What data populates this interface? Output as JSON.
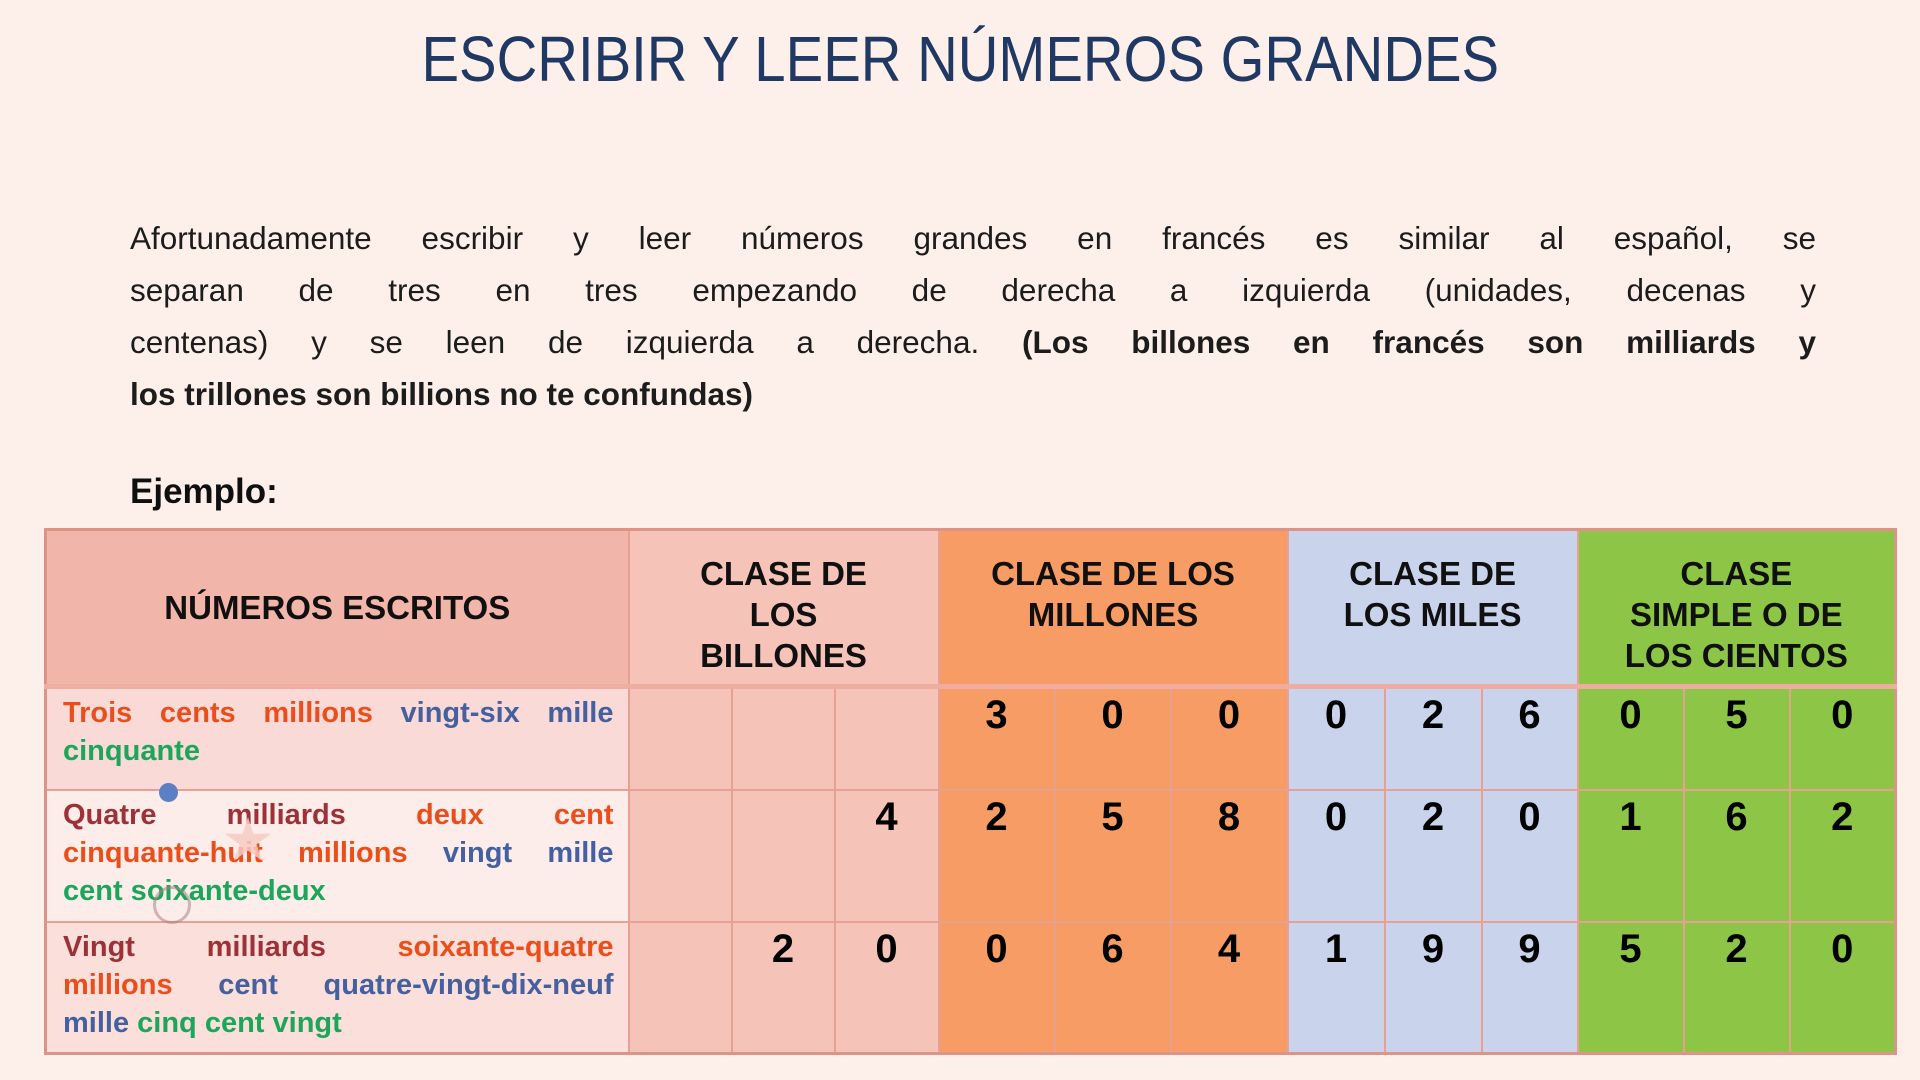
{
  "page": {
    "background": "#fdf0ea"
  },
  "title": "ESCRIBIR Y LEER NÚMEROS GRANDES",
  "example_label": "Ejemplo:",
  "intro": {
    "lines": [
      [
        {
          "t": "Afortunadamente escribir y leer números grandes en francés es similar al español, se",
          "b": 0
        }
      ],
      [
        {
          "t": "separan de tres en tres empezando de derecha a izquierda (unidades, decenas y",
          "b": 0
        }
      ],
      [
        {
          "t": "centenas) y se leen de izquierda a derecha.",
          "b": 0
        },
        {
          "t": "(Los billones en francés son milliards y",
          "b": 1
        }
      ],
      [
        {
          "t": "los trillones son billions no te confundas)",
          "b": 1
        }
      ]
    ]
  },
  "colors": {
    "title": "#203864",
    "sections": {
      "col1h": "#f2b5a9",
      "bill": "#f5c3b8",
      "mill": "#f89c66",
      "mile": "#c9d3eb",
      "cent": "#8dc646"
    },
    "row_backgrounds": [
      "#f9dad6",
      "#fdedea",
      "#fbdfdb"
    ],
    "roles": {
      "billions": "#9c3137",
      "millions": "#e94e1b",
      "thousands": "#44609f",
      "units": "#1ca65b"
    }
  },
  "table": {
    "headers": [
      {
        "label": "NÚMEROS ESCRITOS",
        "span": 1,
        "section": "col1h",
        "name": "numeros-escritos"
      },
      {
        "label": "CLASE DE\nLOS\nBILLONES",
        "span": 3,
        "section": "bill",
        "name": "clase-billones"
      },
      {
        "label": "CLASE DE LOS\nMILLONES",
        "span": 3,
        "section": "mill",
        "name": "clase-millones"
      },
      {
        "label": "CLASE DE\nLOS MILES",
        "span": 3,
        "section": "mile",
        "name": "clase-miles"
      },
      {
        "label": "CLASE\nSIMPLE O DE\nLOS CIENTOS",
        "span": 3,
        "section": "cent",
        "name": "clase-cientos"
      }
    ],
    "column_sections": [
      "bill",
      "bill",
      "bill",
      "mill",
      "mill",
      "mill",
      "mile",
      "mile",
      "mile",
      "cent",
      "cent",
      "cent"
    ],
    "rows": [
      {
        "written_lines": [
          [
            {
              "t": "Trois cents millions",
              "role": "millions"
            },
            {
              "t": "vingt-six mille",
              "role": "thousands"
            }
          ],
          [
            {
              "t": "cinquante",
              "role": "units"
            }
          ]
        ],
        "digits": [
          "",
          "",
          "",
          "3",
          "0",
          "0",
          "0",
          "2",
          "6",
          "0",
          "5",
          "0"
        ]
      },
      {
        "written_lines": [
          [
            {
              "t": "Quatre milliards",
              "role": "billions"
            },
            {
              "t": "deux cent",
              "role": "millions"
            }
          ],
          [
            {
              "t": "cinquante-huit millions",
              "role": "millions"
            },
            {
              "t": "vingt mille",
              "role": "thousands"
            }
          ],
          [
            {
              "t": "cent soixante-deux",
              "role": "units"
            }
          ]
        ],
        "digits": [
          "",
          "",
          "4",
          "2",
          "5",
          "8",
          "0",
          "2",
          "0",
          "1",
          "6",
          "2"
        ]
      },
      {
        "written_lines": [
          [
            {
              "t": "Vingt milliards",
              "role": "billions"
            },
            {
              "t": "soixante-quatre",
              "role": "millions"
            }
          ],
          [
            {
              "t": "millions",
              "role": "millions"
            },
            {
              "t": "cent quatre-vingt-dix-neuf",
              "role": "thousands"
            }
          ],
          [
            {
              "t": "mille",
              "role": "thousands"
            },
            {
              "t": "cinq cent vingt",
              "role": "units"
            }
          ]
        ],
        "digits": [
          "",
          "2",
          "0",
          "0",
          "6",
          "4",
          "1",
          "9",
          "9",
          "5",
          "2",
          "0"
        ]
      }
    ]
  },
  "artifacts": {
    "dot": "pointer-dot",
    "star": "star-highlight",
    "ring": "circle-outline"
  }
}
